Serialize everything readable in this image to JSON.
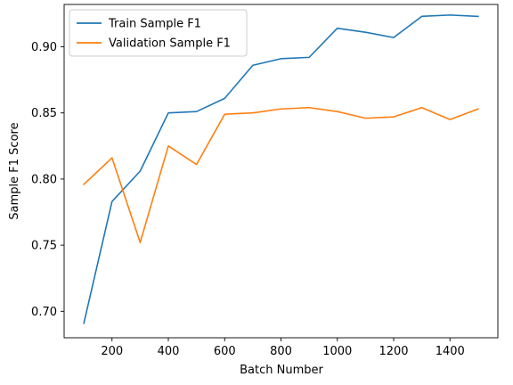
{
  "chart_data": {
    "type": "line",
    "title": "",
    "xlabel": "Batch Number",
    "ylabel": "Sample F1 Score",
    "xlim": [
      30,
      1570
    ],
    "ylim": [
      0.68,
      0.932
    ],
    "xticks": [
      200,
      400,
      600,
      800,
      1000,
      1200,
      1400
    ],
    "yticks": [
      0.7,
      0.75,
      0.8,
      0.85,
      0.9
    ],
    "x": [
      100,
      200,
      300,
      400,
      500,
      600,
      700,
      800,
      900,
      1000,
      1100,
      1200,
      1300,
      1400,
      1500
    ],
    "series": [
      {
        "name": "Train Sample F1",
        "color": "#1f77b4",
        "values": [
          0.691,
          0.783,
          0.806,
          0.85,
          0.851,
          0.861,
          0.886,
          0.891,
          0.892,
          0.914,
          0.911,
          0.907,
          0.923,
          0.924,
          0.923
        ]
      },
      {
        "name": "Validation Sample F1",
        "color": "#ff7f0e",
        "values": [
          0.796,
          0.816,
          0.752,
          0.825,
          0.811,
          0.849,
          0.85,
          0.853,
          0.854,
          0.851,
          0.846,
          0.847,
          0.854,
          0.845,
          0.853
        ]
      }
    ],
    "grid": false,
    "legend_position": "top-left"
  }
}
